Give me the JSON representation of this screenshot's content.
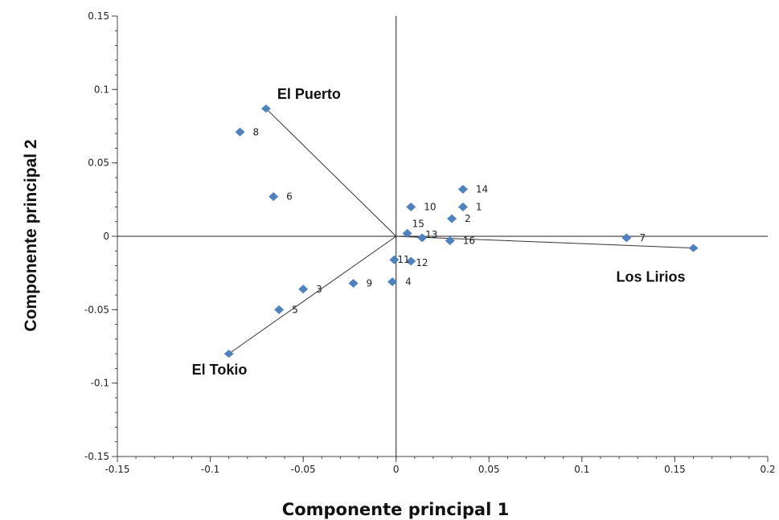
{
  "chart_data": {
    "type": "scatter",
    "xlabel": "Componente principal 1",
    "ylabel": "Componente principal 2",
    "xlim": [
      -0.15,
      0.2
    ],
    "ylim": [
      -0.15,
      0.15
    ],
    "x_ticks": [
      -0.15,
      -0.1,
      -0.05,
      0,
      0.05,
      0.1,
      0.15,
      0.2
    ],
    "x_tick_labels": [
      "-0.15",
      "-0.1",
      "-0.05",
      "0",
      "0.05",
      "0.1",
      "0.15",
      "0.2"
    ],
    "y_ticks": [
      0.15,
      0.1,
      0.05,
      0,
      -0.05,
      -0.1,
      -0.15
    ],
    "y_tick_labels": [
      "0.15",
      "0.1",
      "0.05",
      "0",
      "-0.05",
      "-0.1",
      "-0.15"
    ],
    "grid": false,
    "marker_color": "#4F81BD",
    "points": [
      {
        "label": "1",
        "x": 0.036,
        "y": 0.02
      },
      {
        "label": "2",
        "x": 0.03,
        "y": 0.012
      },
      {
        "label": "3",
        "x": -0.05,
        "y": -0.036
      },
      {
        "label": "4",
        "x": -0.002,
        "y": -0.031
      },
      {
        "label": "5",
        "x": -0.063,
        "y": -0.05
      },
      {
        "label": "6",
        "x": -0.066,
        "y": 0.027
      },
      {
        "label": "7",
        "x": 0.124,
        "y": -0.001
      },
      {
        "label": "8",
        "x": -0.084,
        "y": 0.071
      },
      {
        "label": "9",
        "x": -0.023,
        "y": -0.032
      },
      {
        "label": "10",
        "x": 0.008,
        "y": 0.02
      },
      {
        "label": "11",
        "x": -0.001,
        "y": -0.016
      },
      {
        "label": "12",
        "x": 0.008,
        "y": -0.017
      },
      {
        "label": "13",
        "x": 0.014,
        "y": -0.001
      },
      {
        "label": "14",
        "x": 0.036,
        "y": 0.032
      },
      {
        "label": "15",
        "x": 0.006,
        "y": 0.002
      },
      {
        "label": "16",
        "x": 0.029,
        "y": -0.003
      }
    ],
    "vectors": [
      {
        "name": "El Puerto",
        "x": -0.07,
        "y": 0.087
      },
      {
        "name": "Los Lirios",
        "x": 0.16,
        "y": -0.008
      },
      {
        "name": "El Tokio",
        "x": -0.09,
        "y": -0.08
      }
    ]
  }
}
